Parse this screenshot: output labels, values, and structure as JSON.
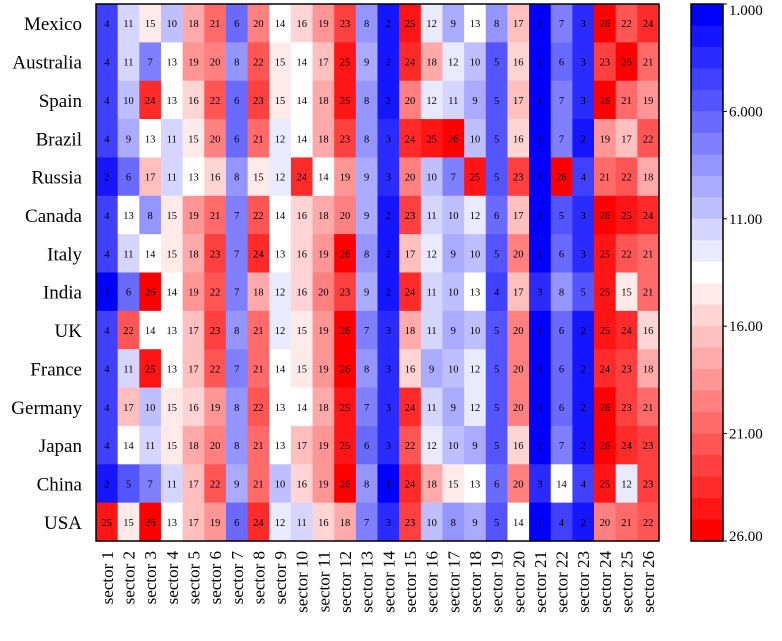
{
  "chart_data": {
    "type": "heatmap",
    "title": "",
    "xlabel": "",
    "ylabel": "",
    "rows": [
      "Mexico",
      "Australia",
      "Spain",
      "Brazil",
      "Russia",
      "Canada",
      "Italy",
      "India",
      "UK",
      "France",
      "Germany",
      "Japan",
      "China",
      "USA"
    ],
    "columns": [
      "sector 1",
      "sector 2",
      "sector 3",
      "sector 4",
      "sector 5",
      "sector 6",
      "sector 7",
      "sector 8",
      "sector 9",
      "sector 10",
      "sector 11",
      "sector 12",
      "sector 13",
      "sector 14",
      "sector 15",
      "sector 16",
      "sector 17",
      "sector 18",
      "sector 19",
      "sector 20",
      "sector 21",
      "sector 22",
      "sector 23",
      "sector 24",
      "sector 25",
      "sector 26"
    ],
    "values": [
      [
        4,
        11,
        15,
        10,
        18,
        21,
        6,
        20,
        14,
        16,
        19,
        23,
        8,
        2,
        25,
        12,
        9,
        13,
        8,
        17,
        1,
        7,
        3,
        26,
        22,
        24
      ],
      [
        4,
        11,
        7,
        13,
        19,
        20,
        8,
        22,
        15,
        14,
        17,
        25,
        9,
        2,
        24,
        18,
        12,
        10,
        5,
        16,
        1,
        6,
        3,
        23,
        26,
        21
      ],
      [
        4,
        10,
        24,
        13,
        16,
        22,
        6,
        23,
        15,
        14,
        18,
        25,
        8,
        2,
        20,
        12,
        11,
        9,
        5,
        17,
        1,
        7,
        3,
        26,
        21,
        19
      ],
      [
        4,
        9,
        13,
        11,
        15,
        20,
        6,
        21,
        12,
        14,
        18,
        23,
        8,
        3,
        24,
        25,
        26,
        10,
        5,
        16,
        1,
        7,
        2,
        19,
        17,
        22
      ],
      [
        2,
        6,
        17,
        11,
        13,
        16,
        8,
        15,
        12,
        24,
        14,
        19,
        9,
        3,
        20,
        10,
        7,
        25,
        5,
        23,
        1,
        26,
        4,
        21,
        22,
        18
      ],
      [
        4,
        13,
        8,
        15,
        19,
        21,
        7,
        22,
        14,
        16,
        18,
        20,
        9,
        2,
        23,
        11,
        10,
        12,
        6,
        17,
        1,
        5,
        3,
        26,
        25,
        24
      ],
      [
        4,
        11,
        14,
        15,
        18,
        23,
        7,
        24,
        13,
        16,
        19,
        26,
        8,
        2,
        17,
        12,
        9,
        10,
        5,
        20,
        1,
        6,
        3,
        25,
        22,
        21
      ],
      [
        1,
        6,
        26,
        14,
        19,
        22,
        7,
        18,
        12,
        16,
        20,
        23,
        9,
        2,
        24,
        11,
        10,
        13,
        4,
        17,
        3,
        8,
        5,
        25,
        15,
        21
      ],
      [
        4,
        22,
        14,
        13,
        17,
        23,
        8,
        21,
        12,
        15,
        19,
        26,
        7,
        3,
        18,
        11,
        9,
        10,
        5,
        20,
        1,
        6,
        2,
        25,
        24,
        16
      ],
      [
        4,
        11,
        25,
        13,
        17,
        22,
        7,
        21,
        14,
        15,
        19,
        26,
        8,
        3,
        16,
        9,
        10,
        12,
        5,
        20,
        1,
        6,
        2,
        24,
        23,
        18
      ],
      [
        4,
        17,
        10,
        15,
        16,
        19,
        8,
        22,
        13,
        14,
        18,
        25,
        7,
        3,
        24,
        11,
        9,
        12,
        5,
        20,
        1,
        6,
        2,
        26,
        23,
        21
      ],
      [
        4,
        14,
        11,
        15,
        18,
        20,
        8,
        21,
        13,
        17,
        19,
        25,
        6,
        3,
        22,
        12,
        10,
        9,
        5,
        16,
        1,
        7,
        2,
        26,
        24,
        23
      ],
      [
        2,
        5,
        7,
        11,
        17,
        22,
        9,
        21,
        10,
        16,
        19,
        26,
        8,
        1,
        24,
        18,
        15,
        13,
        6,
        20,
        3,
        14,
        4,
        25,
        12,
        23
      ],
      [
        25,
        15,
        26,
        13,
        17,
        19,
        6,
        24,
        12,
        11,
        16,
        18,
        7,
        3,
        23,
        10,
        8,
        9,
        5,
        14,
        1,
        4,
        2,
        20,
        21,
        22
      ]
    ],
    "value_range": [
      1,
      26
    ],
    "colormap": [
      "#0000ff",
      "#ffffff",
      "#ff0000"
    ],
    "colorbar": {
      "labels": [
        "1.000",
        "6.000",
        "11.00",
        "16.00",
        "21.00",
        "26.00"
      ],
      "ticks": [
        1,
        6,
        11,
        16,
        21,
        26
      ],
      "levels": 25
    }
  }
}
